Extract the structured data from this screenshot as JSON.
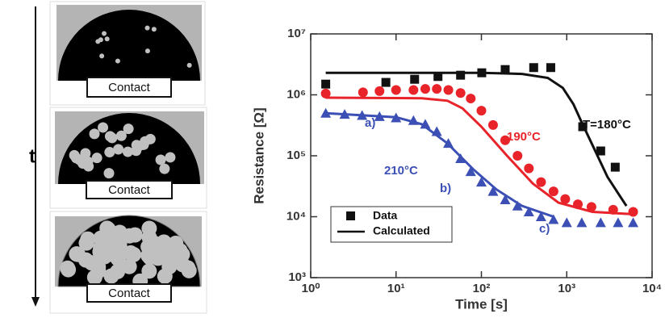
{
  "diagram": {
    "arrow_label": "t",
    "panels": [
      {
        "label": "Contact"
      },
      {
        "label": "Contact"
      },
      {
        "label": "Contact"
      }
    ]
  },
  "chart_data": {
    "type": "scatter-line",
    "xlabel": "Time [s]",
    "ylabel": "Resistance [Ω]",
    "xscale": "log",
    "yscale": "log",
    "xlim": [
      1,
      10000
    ],
    "ylim": [
      1000,
      10000000
    ],
    "xticks": [
      {
        "value": 1,
        "label": "10⁰"
      },
      {
        "value": 10,
        "label": "10¹"
      },
      {
        "value": 100,
        "label": "10²"
      },
      {
        "value": 1000,
        "label": "10³"
      },
      {
        "value": 10000,
        "label": "10⁴"
      }
    ],
    "yticks": [
      {
        "value": 1000,
        "label": "10³"
      },
      {
        "value": 10000,
        "label": "10⁴"
      },
      {
        "value": 100000,
        "label": "10⁵"
      },
      {
        "value": 1000000,
        "label": "10⁶"
      },
      {
        "value": 10000000,
        "label": "10⁷"
      }
    ],
    "legend": [
      {
        "label": "Data"
      },
      {
        "label": "Calculated"
      }
    ],
    "series": [
      {
        "label": "T=180°C",
        "color": "#111111",
        "marker": "square",
        "x": [
          1.5,
          7.6,
          16.5,
          31,
          57,
          101,
          190,
          410,
          650,
          1540,
          2500,
          3700
        ],
        "values": [
          1500000,
          1600000,
          1800000,
          2000000,
          2100000,
          2300000,
          2600000,
          2800000,
          2800000,
          300000,
          120000,
          65000
        ],
        "fit_x": [
          1.5,
          100,
          300,
          600,
          900,
          1200,
          1500,
          2000,
          3000,
          5000
        ],
        "fit_values": [
          2300000,
          2300000,
          2200000,
          1900000,
          1300000,
          700000,
          350000,
          150000,
          45000,
          15000
        ]
      },
      {
        "label": "190°C",
        "color": "#e8232a",
        "marker": "circle",
        "x": [
          1.5,
          4.1,
          6.4,
          10,
          16,
          22,
          30,
          41,
          57,
          75,
          100,
          137,
          190,
          265,
          360,
          500,
          700,
          960,
          1350,
          1950,
          3500,
          6000
        ],
        "values": [
          1050000,
          1100000,
          1150000,
          1200000,
          1200000,
          1250000,
          1250000,
          1200000,
          1070000,
          870000,
          550000,
          320000,
          180000,
          100000,
          62000,
          37000,
          26000,
          19500,
          16000,
          14500,
          13000,
          12000
        ],
        "fit_x": [
          1.5,
          20,
          40,
          60,
          100,
          200,
          400,
          800,
          2000,
          6000
        ],
        "fit_values": [
          900000,
          880000,
          800000,
          600000,
          300000,
          100000,
          35000,
          17000,
          12000,
          11000
        ]
      },
      {
        "label": "210°C",
        "color": "#3b4fb5",
        "marker": "triangle",
        "x": [
          1.5,
          2.5,
          4,
          6.4,
          10,
          16,
          22,
          30,
          41,
          57,
          75,
          100,
          137,
          190,
          265,
          360,
          500,
          700,
          1000,
          1500,
          2500,
          4000,
          6000
        ],
        "values": [
          500000,
          480000,
          460000,
          440000,
          420000,
          380000,
          330000,
          250000,
          160000,
          90000,
          55000,
          37000,
          26000,
          19000,
          15000,
          12000,
          10000,
          9000,
          8000,
          8000,
          8000,
          8000,
          8000
        ],
        "fit_x": [
          1.5,
          10,
          20,
          40,
          80,
          150,
          300,
          700
        ],
        "fit_values": [
          500000,
          430000,
          330000,
          160000,
          60000,
          28000,
          15000,
          10000
        ]
      }
    ],
    "annotations": [
      {
        "text": "T=180°C",
        "color": "#111111"
      },
      {
        "text": "190°C",
        "color": "#e8232a"
      },
      {
        "text": "210°C",
        "color": "#3b4fb5"
      },
      {
        "text": "a)",
        "color": "#3b4fb5"
      },
      {
        "text": "b)",
        "color": "#3b4fb5"
      },
      {
        "text": "c)",
        "color": "#3b4fb5"
      }
    ]
  }
}
